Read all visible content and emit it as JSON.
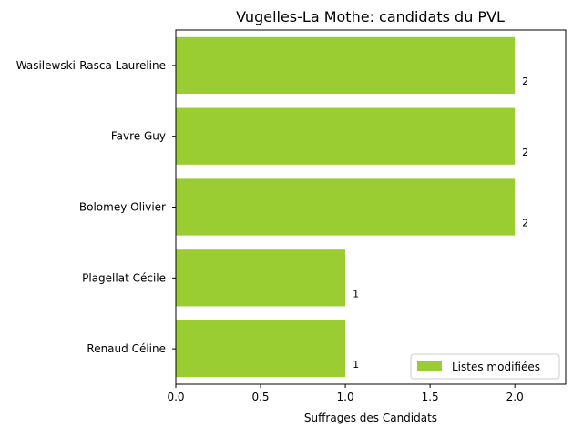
{
  "chart_data": {
    "type": "bar",
    "orientation": "horizontal",
    "title": "Vugelles-La Mothe: candidats du PVL",
    "xlabel": "Suffrages des Candidats",
    "ylabel": "",
    "categories": [
      "Wasilewski-Rasca Laureline",
      "Favre Guy",
      "Bolomey Olivier",
      "Plagellat Cécile",
      "Renaud Céline"
    ],
    "series": [
      {
        "name": "Listes modifiées",
        "values": [
          2,
          2,
          2,
          1,
          1
        ],
        "color": "#9acd32"
      }
    ],
    "data_labels": [
      "2",
      "2",
      "2",
      "1",
      "1"
    ],
    "xlim": [
      0,
      2.3
    ],
    "xticks": [
      0,
      0.5,
      1,
      1.5,
      2
    ],
    "xtick_labels": [
      "0.0",
      "0.5",
      "1.0",
      "1.5",
      "2.0"
    ],
    "grid": false,
    "legend_position": "lower right"
  }
}
